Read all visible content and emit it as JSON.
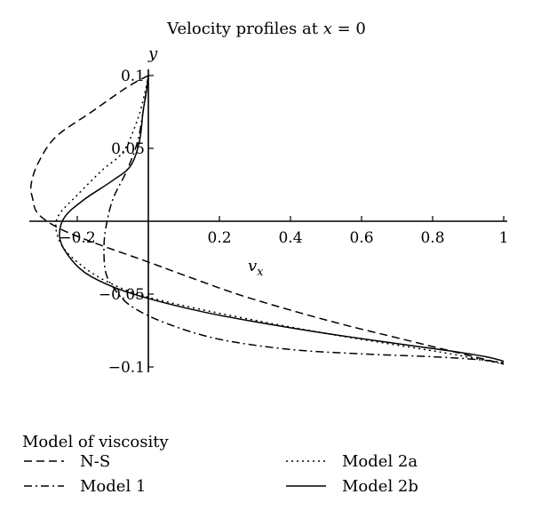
{
  "chart_data": {
    "type": "line",
    "title_main": "Velocity profiles at ",
    "title_var": "x",
    "title_rest": " = 0",
    "xlabel_var": "v",
    "xlabel_sub": "x",
    "ylabel": "y",
    "xlim": [
      -0.33,
      1.0
    ],
    "ylim": [
      -0.1,
      0.1
    ],
    "x_ticks": [
      {
        "value": -0.2,
        "label": "−0.2"
      },
      {
        "value": 0.2,
        "label": "0.2"
      },
      {
        "value": 0.4,
        "label": "0.4"
      },
      {
        "value": 0.6,
        "label": "0.6"
      },
      {
        "value": 0.8,
        "label": "0.8"
      },
      {
        "value": 1.0,
        "label": "1"
      }
    ],
    "y_ticks": [
      {
        "value": 0.1,
        "label": "0.1"
      },
      {
        "value": 0.05,
        "label": "0.05"
      },
      {
        "value": -0.05,
        "label": "−0.05"
      },
      {
        "value": -0.1,
        "label": "−0.1"
      }
    ],
    "grid": false,
    "legend_title": "Model of viscosity",
    "legend_position": "bottom",
    "series": [
      {
        "name": "N-S",
        "dash": "9,5",
        "points": [
          [
            0.0,
            0.1
          ],
          [
            -0.06,
            0.092
          ],
          [
            -0.16,
            0.075
          ],
          [
            -0.26,
            0.058
          ],
          [
            -0.31,
            0.04
          ],
          [
            -0.33,
            0.025
          ],
          [
            -0.325,
            0.015
          ],
          [
            -0.31,
            0.005
          ],
          [
            -0.25,
            -0.005
          ],
          [
            -0.15,
            -0.015
          ],
          [
            0.0,
            -0.028
          ],
          [
            0.1,
            -0.037
          ],
          [
            0.25,
            -0.05
          ],
          [
            0.4,
            -0.061
          ],
          [
            0.55,
            -0.071
          ],
          [
            0.7,
            -0.08
          ],
          [
            0.85,
            -0.089
          ],
          [
            1.0,
            -0.098
          ]
        ]
      },
      {
        "name": "Model 1",
        "dash": "9,4,2,4",
        "points": [
          [
            0.0,
            0.1
          ],
          [
            -0.005,
            0.09
          ],
          [
            -0.015,
            0.075
          ],
          [
            -0.03,
            0.055
          ],
          [
            -0.06,
            0.035
          ],
          [
            -0.1,
            0.015
          ],
          [
            -0.12,
            -0.005
          ],
          [
            -0.125,
            -0.02
          ],
          [
            -0.12,
            -0.035
          ],
          [
            -0.1,
            -0.045
          ],
          [
            -0.05,
            -0.058
          ],
          [
            0.05,
            -0.07
          ],
          [
            0.2,
            -0.081
          ],
          [
            0.4,
            -0.088
          ],
          [
            0.6,
            -0.091
          ],
          [
            0.8,
            -0.093
          ],
          [
            0.93,
            -0.095
          ],
          [
            1.0,
            -0.097
          ]
        ]
      },
      {
        "name": "Model 2a",
        "dash": "2,4",
        "points": [
          [
            0.0,
            0.1
          ],
          [
            -0.01,
            0.088
          ],
          [
            -0.03,
            0.07
          ],
          [
            -0.07,
            0.048
          ],
          [
            -0.13,
            0.035
          ],
          [
            -0.2,
            0.018
          ],
          [
            -0.25,
            0.005
          ],
          [
            -0.26,
            -0.005
          ],
          [
            -0.24,
            -0.018
          ],
          [
            -0.19,
            -0.03
          ],
          [
            -0.12,
            -0.041
          ],
          [
            -0.03,
            -0.05
          ],
          [
            0.1,
            -0.058
          ],
          [
            0.3,
            -0.068
          ],
          [
            0.5,
            -0.077
          ],
          [
            0.7,
            -0.085
          ],
          [
            0.85,
            -0.091
          ],
          [
            1.0,
            -0.098
          ]
        ]
      },
      {
        "name": "Model 2b",
        "dash": "",
        "points": [
          [
            0.0,
            0.1
          ],
          [
            -0.005,
            0.09
          ],
          [
            -0.015,
            0.075
          ],
          [
            -0.025,
            0.055
          ],
          [
            -0.05,
            0.038
          ],
          [
            -0.1,
            0.028
          ],
          [
            -0.18,
            0.015
          ],
          [
            -0.235,
            0.003
          ],
          [
            -0.25,
            -0.01
          ],
          [
            -0.23,
            -0.022
          ],
          [
            -0.18,
            -0.035
          ],
          [
            -0.1,
            -0.045
          ],
          [
            0.0,
            -0.053
          ],
          [
            0.15,
            -0.062
          ],
          [
            0.3,
            -0.069
          ],
          [
            0.5,
            -0.077
          ],
          [
            0.7,
            -0.084
          ],
          [
            0.85,
            -0.089
          ],
          [
            0.95,
            -0.093
          ],
          [
            1.0,
            -0.096
          ]
        ]
      }
    ]
  }
}
